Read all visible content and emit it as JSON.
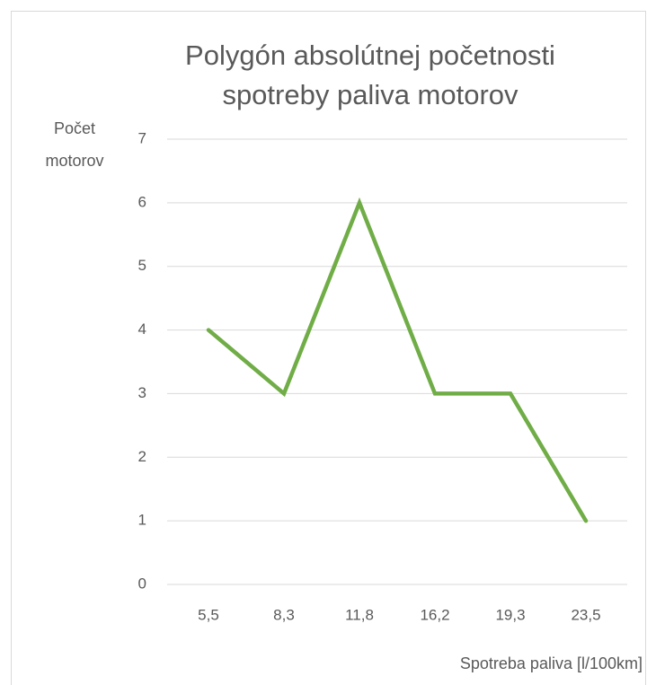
{
  "chart_data": {
    "type": "line",
    "title": [
      "Polygón absolútnej početnosti",
      "spotreby paliva motorov"
    ],
    "y_label": [
      "Počet",
      "motorov"
    ],
    "x_label": "Spotreba paliva [l/100km]",
    "categories": [
      "5,5",
      "8,3",
      "11,8",
      "16,2",
      "19,3",
      "23,5"
    ],
    "values": [
      4,
      3,
      6,
      3,
      3,
      1
    ],
    "color": "#70ad47",
    "ylim": [
      0,
      7
    ],
    "yticks": [
      0,
      1,
      2,
      3,
      4,
      5,
      6,
      7
    ],
    "grid": true
  }
}
